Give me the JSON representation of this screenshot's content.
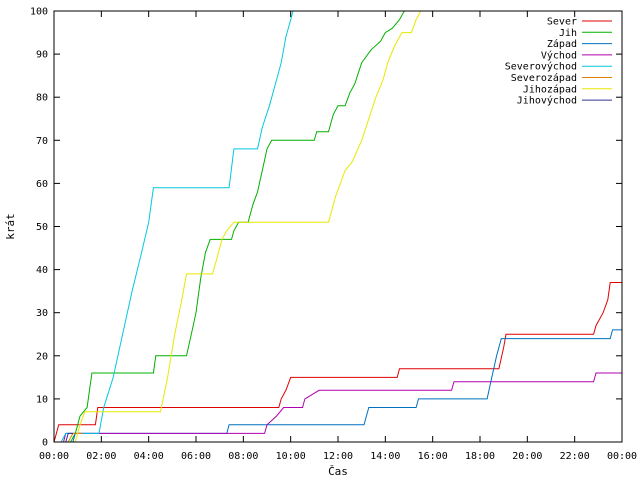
{
  "chart_data": {
    "type": "line",
    "title": "",
    "xlabel": "Čas",
    "ylabel": "krát",
    "xlim": [
      0,
      24
    ],
    "ylim": [
      0,
      100
    ],
    "x_ticks": [
      "00:00",
      "02:00",
      "04:00",
      "06:00",
      "08:00",
      "10:00",
      "12:00",
      "14:00",
      "16:00",
      "18:00",
      "20:00",
      "22:00",
      "00:00"
    ],
    "y_ticks": [
      0,
      10,
      20,
      30,
      40,
      50,
      60,
      70,
      80,
      90,
      100
    ],
    "grid": false,
    "legend_position": "top-right",
    "series": [
      {
        "name": "Sever",
        "color": "#e00000",
        "points": [
          [
            0,
            0
          ],
          [
            0.1,
            2
          ],
          [
            0.2,
            4
          ],
          [
            1.75,
            4
          ],
          [
            1.85,
            8
          ],
          [
            9.5,
            8
          ],
          [
            9.6,
            10
          ],
          [
            9.8,
            12
          ],
          [
            10,
            15
          ],
          [
            14.5,
            15
          ],
          [
            14.6,
            17
          ],
          [
            18.8,
            17
          ],
          [
            19,
            22
          ],
          [
            19.1,
            25
          ],
          [
            22.8,
            25
          ],
          [
            22.9,
            27
          ],
          [
            23.2,
            30
          ],
          [
            23.4,
            33
          ],
          [
            23.5,
            37
          ],
          [
            24,
            37
          ]
        ]
      },
      {
        "name": "Jih",
        "color": "#00b000",
        "points": [
          [
            0.7,
            0
          ],
          [
            0.9,
            2
          ],
          [
            1.1,
            6
          ],
          [
            1.4,
            8
          ],
          [
            1.6,
            16
          ],
          [
            4.2,
            16
          ],
          [
            4.3,
            20
          ],
          [
            5.6,
            20
          ],
          [
            5.8,
            25
          ],
          [
            6,
            30
          ],
          [
            6.2,
            38
          ],
          [
            6.4,
            44
          ],
          [
            6.6,
            47
          ],
          [
            7.5,
            47
          ],
          [
            7.6,
            49
          ],
          [
            7.8,
            51
          ],
          [
            8.2,
            51
          ],
          [
            8.4,
            55
          ],
          [
            8.6,
            58
          ],
          [
            8.8,
            63
          ],
          [
            9,
            68
          ],
          [
            9.2,
            70
          ],
          [
            11,
            70
          ],
          [
            11.1,
            72
          ],
          [
            11.6,
            72
          ],
          [
            11.8,
            76
          ],
          [
            12,
            78
          ],
          [
            12.3,
            78
          ],
          [
            12.5,
            81
          ],
          [
            12.7,
            83
          ],
          [
            13,
            88
          ],
          [
            13.4,
            91
          ],
          [
            13.8,
            93
          ],
          [
            14,
            95
          ],
          [
            14.3,
            96
          ],
          [
            14.6,
            98
          ],
          [
            14.8,
            100
          ]
        ]
      },
      {
        "name": "Západ",
        "color": "#0070c0",
        "points": [
          [
            0.8,
            0
          ],
          [
            0.9,
            2
          ],
          [
            7.3,
            2
          ],
          [
            7.4,
            4
          ],
          [
            13.1,
            4
          ],
          [
            13.3,
            8
          ],
          [
            15.3,
            8
          ],
          [
            15.4,
            10
          ],
          [
            18.3,
            10
          ],
          [
            18.5,
            15
          ],
          [
            18.7,
            20
          ],
          [
            18.9,
            24
          ],
          [
            23.5,
            24
          ],
          [
            23.6,
            26
          ],
          [
            24,
            26
          ]
        ]
      },
      {
        "name": "Východ",
        "color": "#b000b0",
        "points": [
          [
            0.4,
            0
          ],
          [
            0.5,
            2
          ],
          [
            8.9,
            2
          ],
          [
            9,
            4
          ],
          [
            9.4,
            6
          ],
          [
            9.7,
            8
          ],
          [
            10.5,
            8
          ],
          [
            10.6,
            10
          ],
          [
            11.2,
            12
          ],
          [
            16.8,
            12
          ],
          [
            16.9,
            14
          ],
          [
            22.8,
            14
          ],
          [
            22.9,
            16
          ],
          [
            24,
            16
          ]
        ]
      },
      {
        "name": "Severovýchod",
        "color": "#00c8e0",
        "points": [
          [
            0.3,
            0
          ],
          [
            0.5,
            2
          ],
          [
            1.9,
            2
          ],
          [
            2.1,
            8
          ],
          [
            2.5,
            15
          ],
          [
            2.9,
            25
          ],
          [
            3.3,
            35
          ],
          [
            3.7,
            44
          ],
          [
            4,
            51
          ],
          [
            4.2,
            59
          ],
          [
            7.4,
            59
          ],
          [
            7.6,
            68
          ],
          [
            8.6,
            68
          ],
          [
            8.8,
            73
          ],
          [
            9.1,
            78
          ],
          [
            9.4,
            84
          ],
          [
            9.6,
            88
          ],
          [
            9.8,
            94
          ],
          [
            10,
            98
          ],
          [
            10.1,
            100
          ]
        ]
      },
      {
        "name": "Severozápad",
        "color": "#e08000",
        "points": [
          [
            0.6,
            0
          ],
          [
            0.8,
            2
          ],
          [
            1.2,
            2
          ]
        ]
      },
      {
        "name": "Jihozápad",
        "color": "#e8e800",
        "points": [
          [
            0.9,
            0
          ],
          [
            1.1,
            4
          ],
          [
            1.3,
            7
          ],
          [
            4.5,
            7
          ],
          [
            4.8,
            15
          ],
          [
            5.1,
            25
          ],
          [
            5.4,
            33
          ],
          [
            5.6,
            39
          ],
          [
            6.7,
            39
          ],
          [
            6.9,
            43
          ],
          [
            7.1,
            47
          ],
          [
            7.3,
            49
          ],
          [
            7.6,
            51
          ],
          [
            11.6,
            51
          ],
          [
            11.7,
            53
          ],
          [
            11.9,
            57
          ],
          [
            12.1,
            60
          ],
          [
            12.3,
            63
          ],
          [
            12.6,
            65
          ],
          [
            13,
            70
          ],
          [
            13.3,
            75
          ],
          [
            13.6,
            80
          ],
          [
            13.9,
            84
          ],
          [
            14.1,
            88
          ],
          [
            14.4,
            92
          ],
          [
            14.7,
            95
          ],
          [
            15.1,
            95
          ],
          [
            15.3,
            98
          ],
          [
            15.5,
            100
          ]
        ]
      },
      {
        "name": "Jihovýchod",
        "color": "#303090",
        "points": [
          [
            0.5,
            0
          ],
          [
            0.6,
            2
          ],
          [
            0.8,
            2
          ]
        ]
      }
    ]
  }
}
